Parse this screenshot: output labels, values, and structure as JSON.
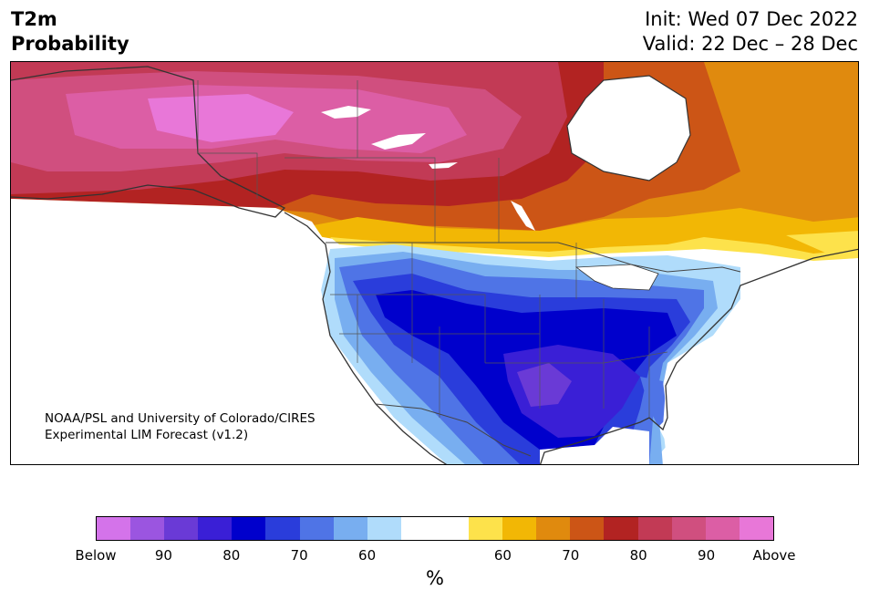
{
  "header": {
    "title_line1": "T2m",
    "title_line2": "Probability",
    "init_label": "Init: Wed 07 Dec 2022",
    "valid_label": "Valid: 22 Dec – 28 Dec"
  },
  "credit": {
    "line1": "NOAA/PSL and University of Colorado/CIRES",
    "line2": "Experimental LIM Forecast (v1.2)"
  },
  "colors": {
    "below": [
      "#d473ea",
      "#9b55e0",
      "#6a3ad6",
      "#3a1fd6",
      "#0000cc",
      "#2a3ddb",
      "#4f74e6",
      "#78aef0",
      "#b0dcfb"
    ],
    "neutral": "#ffffff",
    "above": [
      "#fde24b",
      "#f2b705",
      "#e08a0e",
      "#cc5516",
      "#b22322",
      "#c23a55",
      "#d04f7f",
      "#dc5ea5",
      "#e877d8"
    ]
  },
  "colorbar": {
    "ticks": [
      "Below",
      "90",
      "80",
      "70",
      "60",
      "60",
      "70",
      "80",
      "90",
      "Above"
    ],
    "unit": "%"
  }
}
